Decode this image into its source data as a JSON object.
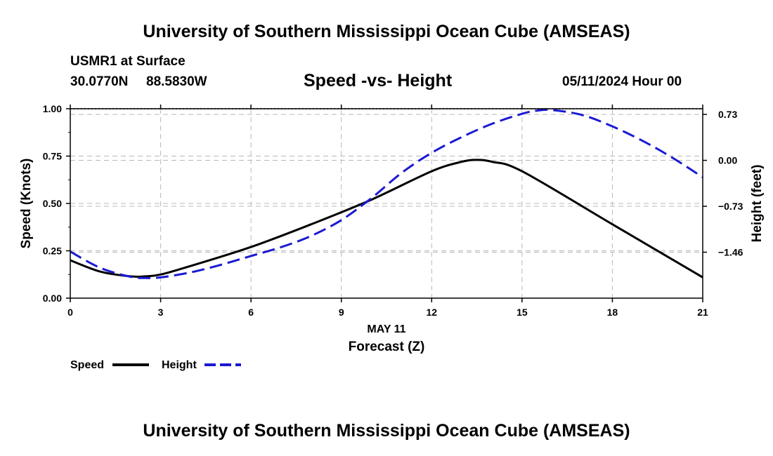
{
  "header": {
    "title": "University of Southern Mississippi Ocean Cube (AMSEAS)",
    "station": "USMR1 at Surface",
    "latitude": "30.0770N",
    "longitude": "88.5830W",
    "datetime": "05/11/2024 Hour 00"
  },
  "footer": {
    "title": "University of Southern Mississippi Ocean Cube (AMSEAS)"
  },
  "chart_data": {
    "type": "line",
    "title": "Speed -vs- Height",
    "xlabel": "Forecast (Z)",
    "xdate_label": "MAY 11",
    "ylabel": "Speed (Knots)",
    "y2label": "Height (feet)",
    "xlim": [
      0,
      21
    ],
    "ylim": [
      0,
      1
    ],
    "y2lim": [
      -2.19,
      0.82
    ],
    "x_ticks": [
      0,
      3,
      6,
      9,
      12,
      15,
      18,
      21
    ],
    "x_tick_labels": [
      "0",
      "3",
      "6",
      "9",
      "12",
      "15",
      "18",
      "21"
    ],
    "y_ticks": [
      0,
      0.25,
      0.5,
      0.75,
      1.0
    ],
    "y_tick_labels": [
      "0.00",
      "0.25",
      "0.50",
      "0.75",
      "1.00"
    ],
    "y2_ticks": [
      0.73,
      0,
      -0.73,
      -1.46
    ],
    "y2_tick_labels": [
      "0.73",
      "0.00",
      "−0.73",
      "−1.46"
    ],
    "grid": true,
    "series": [
      {
        "name": "Speed",
        "axis": "left",
        "color": "#000000",
        "dash": "solid",
        "x": [
          0,
          1,
          2,
          2.5,
          3,
          4,
          6,
          8,
          10,
          12,
          13,
          13.5,
          14,
          15,
          18,
          21
        ],
        "values": [
          0.2,
          0.14,
          0.115,
          0.115,
          0.125,
          0.17,
          0.27,
          0.39,
          0.52,
          0.67,
          0.72,
          0.73,
          0.72,
          0.67,
          0.39,
          0.11
        ]
      },
      {
        "name": "Height",
        "axis": "right",
        "color": "#1a1ad2",
        "dash": "dashed",
        "x": [
          0,
          1,
          2,
          2.5,
          3,
          4,
          5,
          6,
          7,
          8,
          9,
          10,
          11,
          12,
          13,
          14,
          15,
          15.5,
          16,
          17,
          18,
          19,
          20,
          21
        ],
        "values": [
          -1.45,
          -1.71,
          -1.85,
          -1.87,
          -1.86,
          -1.78,
          -1.66,
          -1.52,
          -1.38,
          -1.2,
          -0.95,
          -0.6,
          -0.2,
          0.12,
          0.37,
          0.58,
          0.74,
          0.79,
          0.8,
          0.72,
          0.54,
          0.31,
          0.04,
          -0.27
        ]
      }
    ],
    "legend": [
      {
        "label": "Speed",
        "color": "#000000",
        "dash": "solid"
      },
      {
        "label": "Height",
        "color": "#1a1ad2",
        "dash": "dashed"
      }
    ]
  }
}
